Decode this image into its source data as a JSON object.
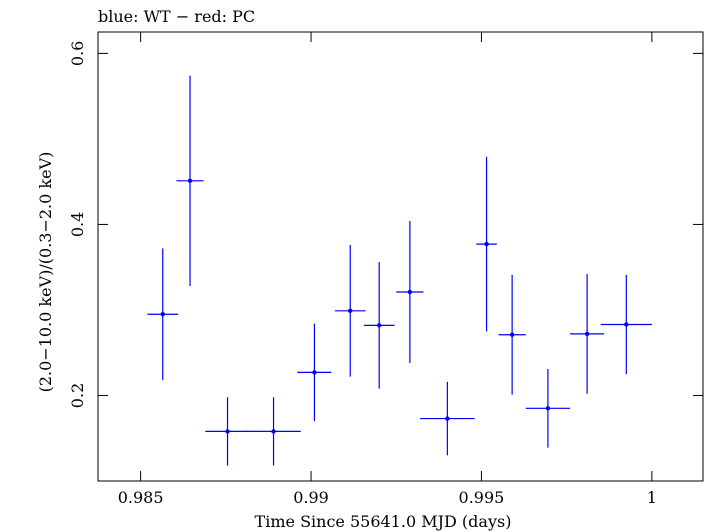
{
  "chart_data": {
    "type": "scatter",
    "title": "blue: WT − red: PC",
    "xlabel": "Time Since 55641.0 MJD (days)",
    "ylabel": "(2.0−10.0 keV)/(0.3−2.0 keV)",
    "xlim": [
      0.98375,
      1.0015
    ],
    "ylim": [
      0.1,
      0.625
    ],
    "x_ticks": [
      0.985,
      0.99,
      0.995,
      1.0
    ],
    "x_tick_labels": [
      "0.985",
      "0.99",
      "0.995",
      "1"
    ],
    "y_ticks": [
      0.2,
      0.4,
      0.6
    ],
    "y_tick_labels": [
      "0.2",
      "0.4",
      "0.6"
    ],
    "grid": false,
    "series": [
      {
        "color": "#0000ff",
        "points": [
          {
            "x": 0.98565,
            "y": 0.295,
            "xerr": 0.00045,
            "yerr_low": 0.077,
            "yerr_high": 0.077
          },
          {
            "x": 0.98645,
            "y": 0.451,
            "xerr": 0.0004,
            "yerr_low": 0.123,
            "yerr_high": 0.123
          },
          {
            "x": 0.98755,
            "y": 0.158,
            "xerr": 0.00065,
            "yerr_low": 0.04,
            "yerr_high": 0.04
          },
          {
            "x": 0.9889,
            "y": 0.158,
            "xerr": 0.0008,
            "yerr_low": 0.04,
            "yerr_high": 0.04
          },
          {
            "x": 0.9901,
            "y": 0.227,
            "xerr": 0.0005,
            "yerr_low": 0.057,
            "yerr_high": 0.057
          },
          {
            "x": 0.99115,
            "y": 0.299,
            "xerr": 0.00045,
            "yerr_low": 0.077,
            "yerr_high": 0.077
          },
          {
            "x": 0.992,
            "y": 0.282,
            "xerr": 0.00045,
            "yerr_low": 0.074,
            "yerr_high": 0.074
          },
          {
            "x": 0.9929,
            "y": 0.321,
            "xerr": 0.0004,
            "yerr_low": 0.083,
            "yerr_high": 0.083
          },
          {
            "x": 0.994,
            "y": 0.173,
            "xerr": 0.0008,
            "yerr_low": 0.043,
            "yerr_high": 0.043
          },
          {
            "x": 0.99515,
            "y": 0.377,
            "xerr": 0.0003,
            "yerr_low": 0.102,
            "yerr_high": 0.102
          },
          {
            "x": 0.9959,
            "y": 0.271,
            "xerr": 0.0004,
            "yerr_low": 0.07,
            "yerr_high": 0.07
          },
          {
            "x": 0.99695,
            "y": 0.185,
            "xerr": 0.00065,
            "yerr_low": 0.046,
            "yerr_high": 0.046
          },
          {
            "x": 0.9981,
            "y": 0.272,
            "xerr": 0.0005,
            "yerr_low": 0.07,
            "yerr_high": 0.07
          },
          {
            "x": 0.99925,
            "y": 0.283,
            "xerr": 0.00075,
            "yerr_low": 0.058,
            "yerr_high": 0.058
          }
        ]
      }
    ]
  }
}
